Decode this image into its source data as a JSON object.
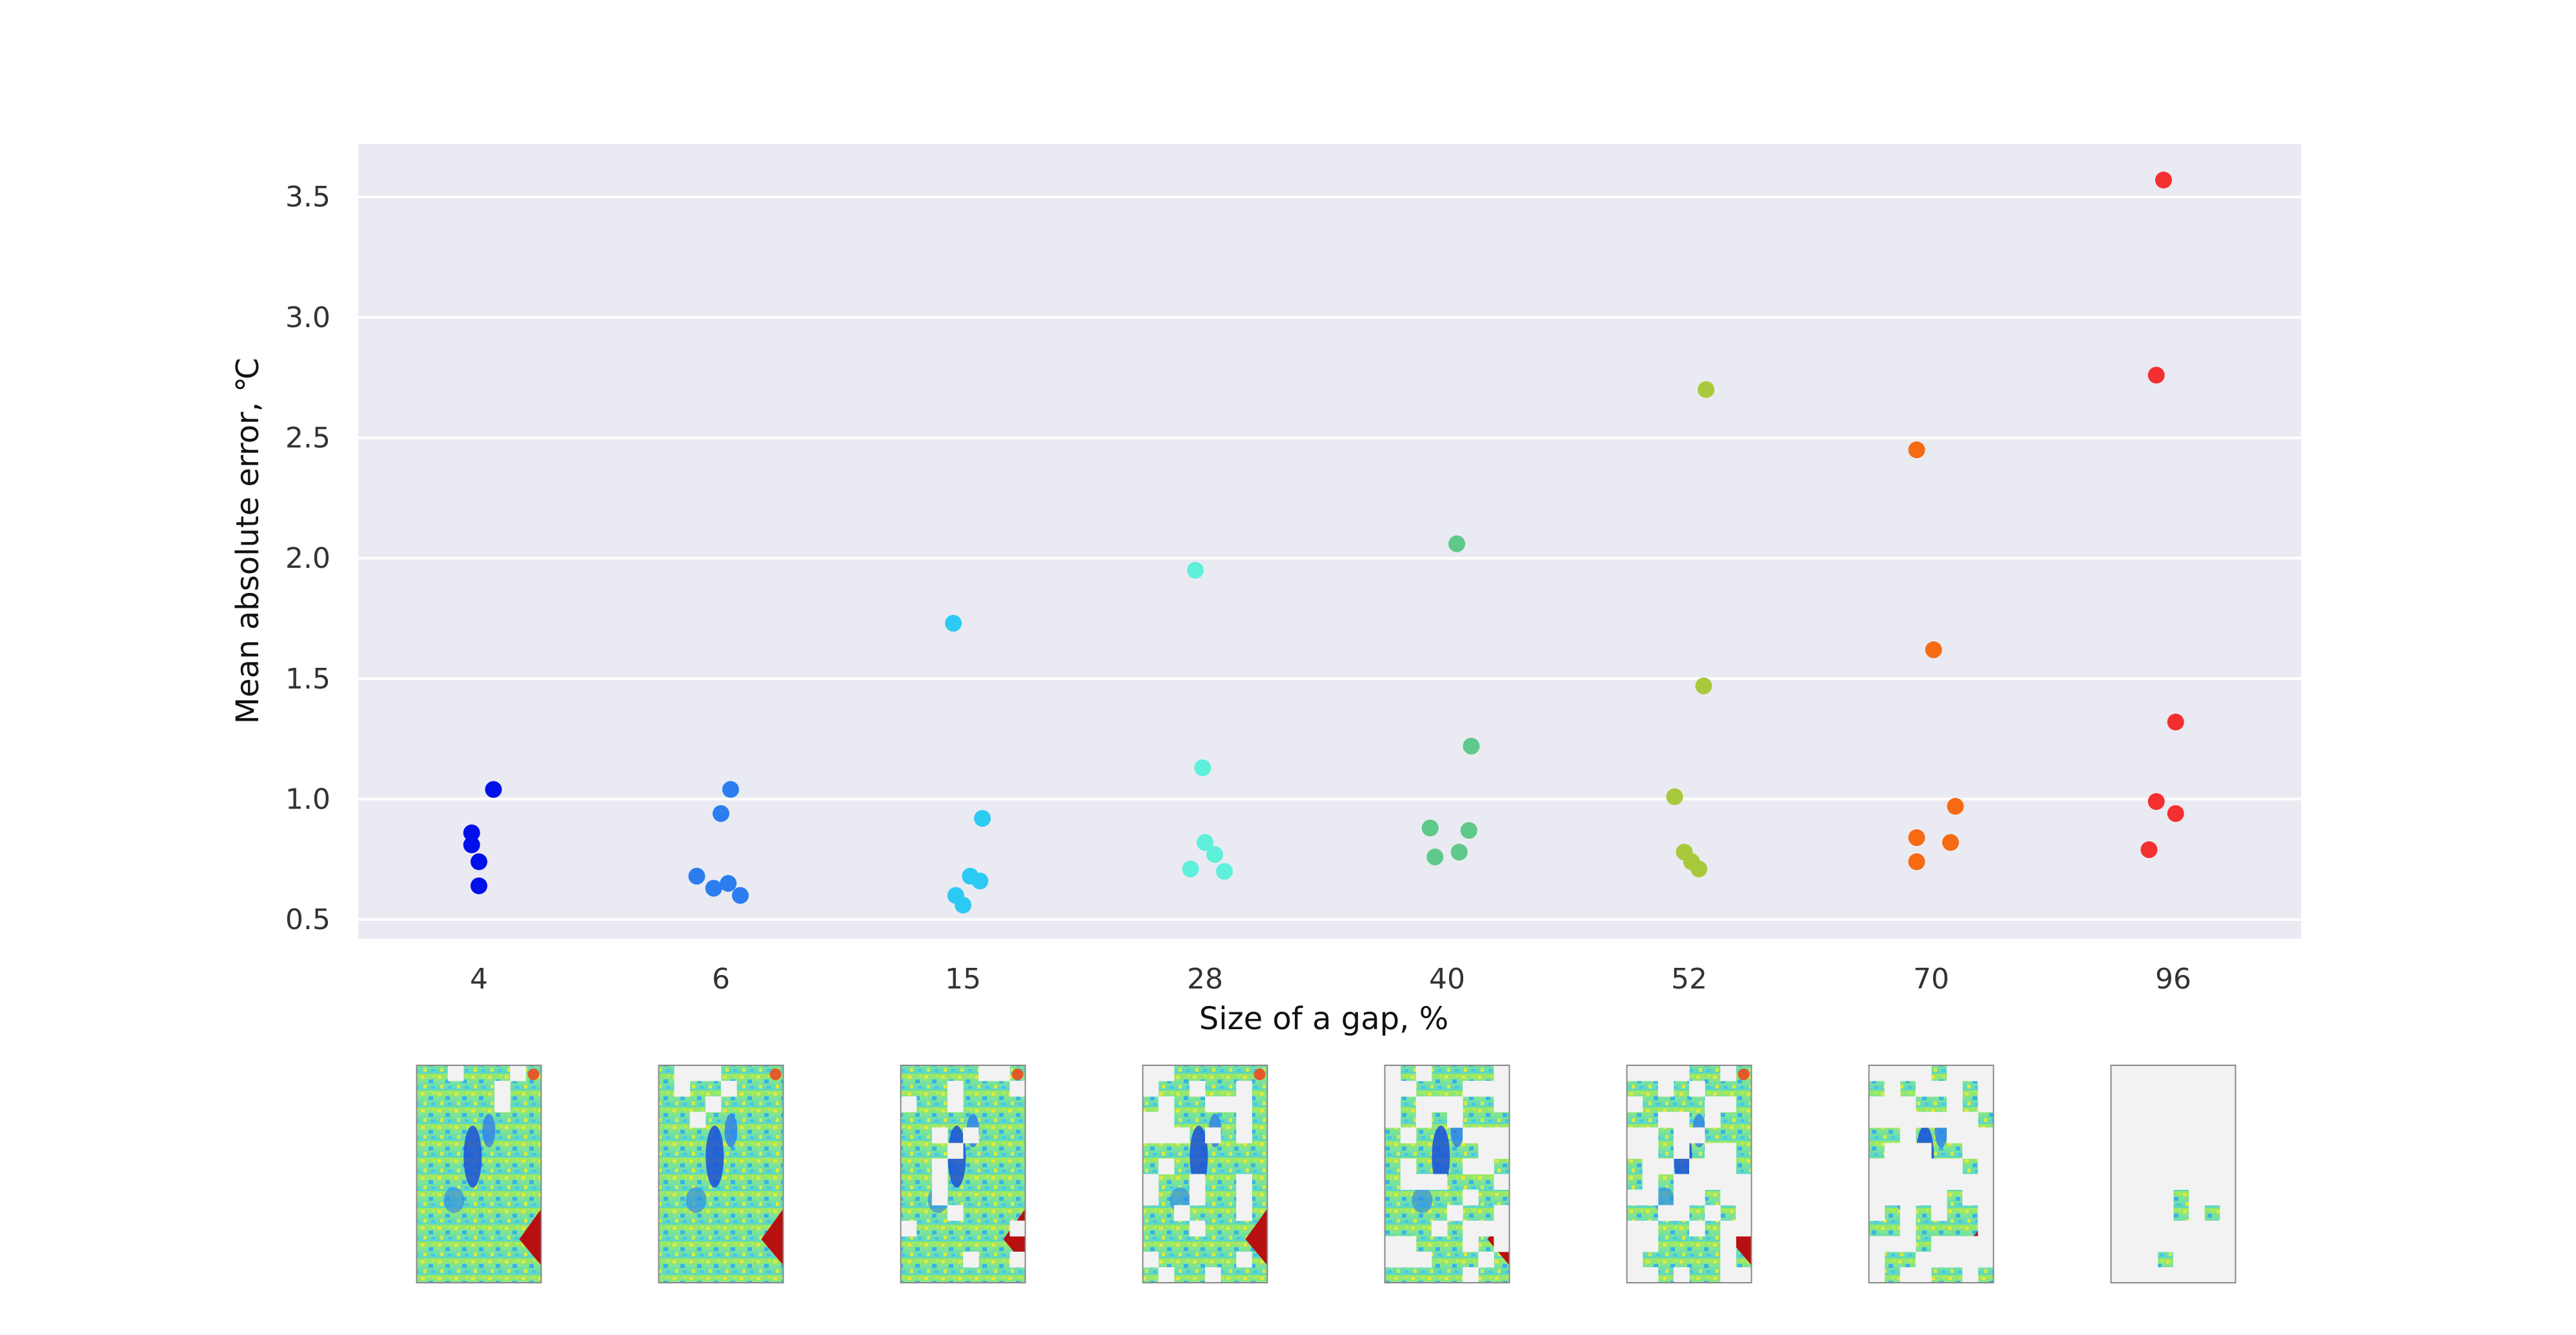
{
  "chart_data": {
    "type": "scatter",
    "title": "",
    "xlabel": "Size of a gap, %",
    "ylabel": "Mean absolute error, ℃",
    "categories": [
      "4",
      "6",
      "15",
      "28",
      "40",
      "52",
      "70",
      "96"
    ],
    "ylim": [
      0.42,
      3.72
    ],
    "yticks": [
      "0.5",
      "1.0",
      "1.5",
      "2.0",
      "2.5",
      "3.0",
      "3.5"
    ],
    "grid": true,
    "legend": "none",
    "series": [
      {
        "category": "4",
        "color": "#0010e8",
        "values": [
          1.04,
          0.86,
          0.81,
          0.74,
          0.64
        ]
      },
      {
        "category": "6",
        "color": "#2b7df0",
        "values": [
          1.04,
          0.94,
          0.68,
          0.65,
          0.63,
          0.6
        ]
      },
      {
        "category": "15",
        "color": "#2ccaf2",
        "values": [
          1.73,
          0.92,
          0.68,
          0.66,
          0.6,
          0.56
        ]
      },
      {
        "category": "28",
        "color": "#5ef0da",
        "values": [
          1.95,
          1.13,
          0.82,
          0.77,
          0.71,
          0.7
        ]
      },
      {
        "category": "40",
        "color": "#5ec98a",
        "values": [
          2.06,
          1.22,
          0.88,
          0.87,
          0.78,
          0.76
        ]
      },
      {
        "category": "52",
        "color": "#a9c93c",
        "values": [
          2.7,
          1.47,
          1.01,
          0.78,
          0.74,
          0.71
        ]
      },
      {
        "category": "70",
        "color": "#f66a12",
        "values": [
          2.45,
          1.62,
          0.97,
          0.84,
          0.82,
          0.74
        ]
      },
      {
        "category": "96",
        "color": "#f42f2f",
        "values": [
          3.57,
          2.76,
          1.32,
          0.99,
          0.94,
          0.79
        ]
      }
    ],
    "jitter": [
      [
        0.06,
        -0.03,
        -0.03,
        0.0,
        0.0
      ],
      [
        0.04,
        0.0,
        -0.1,
        0.03,
        -0.03,
        0.08
      ],
      [
        -0.04,
        0.08,
        0.03,
        0.07,
        -0.03,
        0.0
      ],
      [
        -0.04,
        -0.01,
        0.0,
        0.04,
        -0.06,
        0.08
      ],
      [
        0.04,
        0.1,
        -0.07,
        0.09,
        0.05,
        -0.05
      ],
      [
        0.07,
        0.06,
        -0.06,
        -0.02,
        0.01,
        0.04
      ],
      [
        -0.06,
        0.01,
        0.1,
        -0.06,
        0.08,
        -0.06
      ],
      [
        -0.04,
        -0.07,
        0.01,
        -0.07,
        0.01,
        -0.1
      ]
    ]
  },
  "thumbnails": [
    {
      "category": "4",
      "missing": 0.04
    },
    {
      "category": "6",
      "missing": 0.06
    },
    {
      "category": "15",
      "missing": 0.15
    },
    {
      "category": "28",
      "missing": 0.28
    },
    {
      "category": "40",
      "missing": 0.4
    },
    {
      "category": "52",
      "missing": 0.52
    },
    {
      "category": "70",
      "missing": 0.7
    },
    {
      "category": "96",
      "missing": 0.96
    }
  ]
}
